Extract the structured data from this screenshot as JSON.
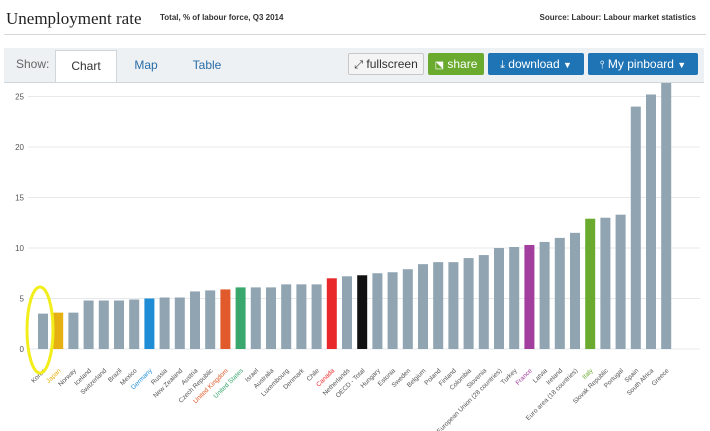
{
  "header": {
    "title": "Unemployment rate",
    "subtitle": "Total, % of labour force, Q3 2014",
    "source": "Source: Labour: Labour market statistics"
  },
  "toolbar": {
    "show_label": "Show:",
    "tabs": [
      {
        "label": "Chart",
        "active": true
      },
      {
        "label": "Map",
        "active": false
      },
      {
        "label": "Table",
        "active": false
      }
    ],
    "fullscreen_label": "fullscreen",
    "share_label": "share",
    "download_label": "download",
    "pinboard_label": "My pinboard"
  },
  "colors": {
    "default": "#90a4b1",
    "highlight_blue": "#1f8dd6",
    "highlight_orange": "#e05a2b",
    "highlight_green": "#3aa76d",
    "highlight_red": "#e8282b",
    "highlight_black": "#111111",
    "highlight_purple": "#a23e9e",
    "highlight_lime": "#6aab2f",
    "highlight_gold": "#e6b012",
    "annotation": "#f2ee1c"
  },
  "chart_data": {
    "type": "bar",
    "ylim": [
      0,
      27
    ],
    "yticks": [
      0,
      5,
      10,
      15,
      20,
      25
    ],
    "categories": [
      "Korea",
      "Japan",
      "Norway",
      "Iceland",
      "Switzerland",
      "Brazil",
      "Mexico",
      "Germany",
      "Russia",
      "New Zealand",
      "Austria",
      "Czech Republic",
      "United Kingdom",
      "United States",
      "Israel",
      "Australia",
      "Luxembourg",
      "Denmark",
      "Chile",
      "Canada",
      "Netherlands",
      "OECD - Total",
      "Hungary",
      "Estonia",
      "Sweden",
      "Belgium",
      "Poland",
      "Finland",
      "Colombia",
      "Slovenia",
      "European Union (28 countries)",
      "Turkey",
      "France",
      "Latvia",
      "Ireland",
      "Euro area (18 countries)",
      "Italy",
      "Slovak Republic",
      "Portugal",
      "Spain",
      "South Africa",
      "Greece"
    ],
    "values": [
      3.5,
      3.6,
      3.6,
      4.8,
      4.8,
      4.8,
      4.9,
      5.0,
      5.1,
      5.1,
      5.7,
      5.8,
      5.9,
      6.1,
      6.1,
      6.1,
      6.4,
      6.4,
      6.4,
      7.0,
      7.2,
      7.3,
      7.5,
      7.6,
      7.9,
      8.4,
      8.6,
      8.6,
      9.0,
      9.3,
      10.0,
      10.1,
      10.3,
      10.6,
      11.0,
      11.5,
      12.9,
      13.0,
      13.3,
      24.0,
      25.2,
      26.5
    ],
    "bar_colors": {
      "Germany": "highlight_blue",
      "United Kingdom": "highlight_orange",
      "United States": "highlight_green",
      "Canada": "highlight_red",
      "OECD - Total": "highlight_black",
      "France": "highlight_purple",
      "Italy": "highlight_lime",
      "Japan": "highlight_gold"
    },
    "label_colors": {
      "Germany": "#1f8dd6",
      "United Kingdom": "#e05a2b",
      "United States": "#3aa76d",
      "Canada": "#e8282b",
      "France": "#a23e9e",
      "Italy": "#6aab2f",
      "Japan": "#e6b012"
    },
    "annotated_category": "Korea"
  }
}
